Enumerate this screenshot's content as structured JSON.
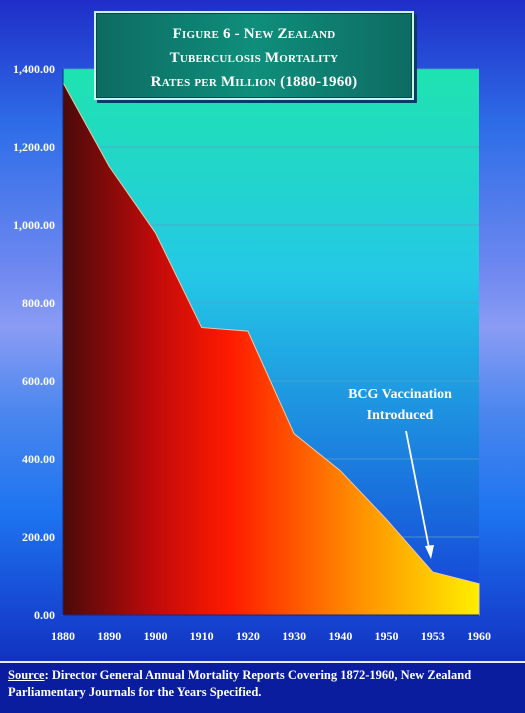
{
  "title": {
    "line1": "Figure 6 - New Zealand",
    "line2": "Tuberculosis Mortality",
    "line3": "Rates per Million (1880-1960)"
  },
  "source": {
    "label": "Source",
    "text": ":  Director General Annual Mortality Reports Covering 1872-1960, New Zealand Parliamentary Journals for the Years Specified."
  },
  "annotation": {
    "line1": "BCG Vaccination",
    "line2": "Introduced"
  },
  "colors": {
    "area_start": "#4a0a0a",
    "area_mid": "#ff1a00",
    "area_end": "#ffee00",
    "plot_top": "#1fe3b0",
    "plot_bottom": "#1440d8",
    "gridline": "#5aa0c8"
  },
  "chart_data": {
    "type": "area",
    "title": "Figure 6 - New Zealand Tuberculosis Mortality Rates per Million (1880-1960)",
    "xlabel": "",
    "ylabel": "",
    "categories": [
      "1880",
      "1890",
      "1900",
      "1910",
      "1920",
      "1930",
      "1940",
      "1950",
      "1953",
      "1960"
    ],
    "values": [
      1365,
      1150,
      980,
      737,
      728,
      465,
      370,
      245,
      110,
      80
    ],
    "ylim": [
      0,
      1400
    ],
    "yticks": [
      0,
      200,
      400,
      600,
      800,
      1000,
      1200,
      1400
    ],
    "ytick_labels": [
      "0.00",
      "200.00",
      "400.00",
      "600.00",
      "800.00",
      "1,000.00",
      "1,200.00",
      "1,400.00"
    ],
    "grid": true,
    "legend": "none"
  }
}
